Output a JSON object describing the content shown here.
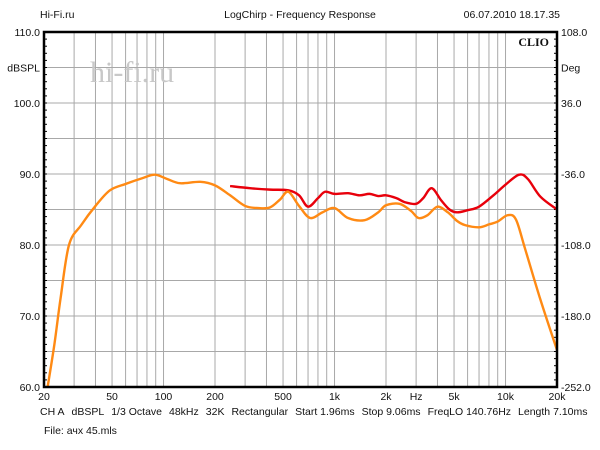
{
  "header": {
    "left": "Hi-Fi.ru",
    "title": "LogChirp - Frequency Response",
    "timestamp": "06.07.2010 18.17.35"
  },
  "watermark": "hi-fi.ru",
  "brand": "CLIO",
  "footer": {
    "settings": [
      "CH A",
      "dBSPL",
      "1/3 Octave",
      "48kHz",
      "32K",
      "Rectangular",
      "Start 1.96ms",
      "Stop 9.06ms",
      "FreqLO 140.76Hz",
      "Length 7.10ms"
    ],
    "file": "File: ачх 45.mls"
  },
  "chart_data": {
    "type": "line",
    "title": "LogChirp - Frequency Response",
    "xlabel": "Hz",
    "ylabel": "dBSPL",
    "y2label": "Deg",
    "xscale": "log",
    "xlim": [
      20,
      20000
    ],
    "ylim": [
      60,
      110
    ],
    "y2lim": [
      -252,
      108
    ],
    "x_ticks": [
      {
        "v": 20,
        "l": "20"
      },
      {
        "v": 50,
        "l": "50"
      },
      {
        "v": 100,
        "l": "100"
      },
      {
        "v": 200,
        "l": "200"
      },
      {
        "v": 500,
        "l": "500"
      },
      {
        "v": 1000,
        "l": "1k"
      },
      {
        "v": 2000,
        "l": "2k"
      },
      {
        "v": 5000,
        "l": "5k"
      },
      {
        "v": 10000,
        "l": "10k"
      },
      {
        "v": 20000,
        "l": "20k"
      }
    ],
    "y_ticks": [
      "60.0",
      "70.0",
      "80.0",
      "90.0",
      "100.0",
      "110.0"
    ],
    "y2_ticks": [
      "-252.0",
      "-180.0",
      "-108.0",
      "-36.0",
      "36.0",
      "108.0"
    ],
    "grid": true,
    "series": [
      {
        "name": "response-red",
        "color": "#e8000b",
        "x": [
          245,
          320,
          420,
          537,
          620,
          700,
          800,
          880,
          1000,
          1200,
          1400,
          1600,
          1800,
          2000,
          2300,
          2600,
          3000,
          3300,
          3700,
          4200,
          4700,
          5200,
          6000,
          7000,
          8500,
          10000,
          12000,
          13500,
          16000,
          20000
        ],
        "y": [
          88.3,
          88.0,
          87.8,
          87.7,
          87.0,
          85.4,
          86.6,
          87.5,
          87.2,
          87.3,
          87.0,
          87.2,
          86.9,
          87.0,
          86.6,
          86.0,
          85.8,
          86.6,
          88.0,
          86.3,
          85.0,
          84.6,
          84.9,
          85.4,
          87.0,
          88.5,
          89.9,
          89.3,
          86.8,
          85.0
        ]
      },
      {
        "name": "response-orange",
        "color": "#ff8a14",
        "x": [
          21,
          23,
          25,
          28,
          33,
          40,
          48.6,
          60,
          75,
          89,
          105,
          125,
          164,
          200,
          245,
          300,
          360,
          420,
          480,
          537,
          620,
          720,
          850,
          1000,
          1200,
          1500,
          1800,
          2000,
          2400,
          2800,
          3100,
          3500,
          4000,
          4600,
          5200,
          5800,
          7000,
          8000,
          9000,
          10300,
          11500,
          13000,
          16000,
          20000
        ],
        "y": [
          60,
          66,
          72.5,
          80,
          82.8,
          85.5,
          87.7,
          88.6,
          89.4,
          89.9,
          89.3,
          88.7,
          88.9,
          88.4,
          87.0,
          85.5,
          85.2,
          85.3,
          86.4,
          87.5,
          85.5,
          83.8,
          84.6,
          85.2,
          83.8,
          83.5,
          84.6,
          85.6,
          85.8,
          84.8,
          83.8,
          84.2,
          85.4,
          84.6,
          83.4,
          82.8,
          82.5,
          82.9,
          83.3,
          84.2,
          83.6,
          79.5,
          72.3,
          65.2
        ]
      }
    ]
  }
}
